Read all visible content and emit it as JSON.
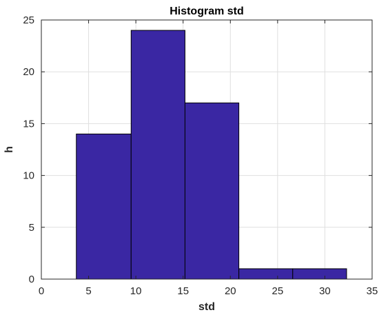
{
  "chart_data": {
    "type": "bar",
    "title": "Histogram std",
    "xlabel": "std",
    "ylabel": "h",
    "xlim": [
      0,
      35
    ],
    "ylim": [
      0,
      25
    ],
    "xticks": [
      "0",
      "5",
      "10",
      "15",
      "20",
      "25",
      "30",
      "35"
    ],
    "yticks": [
      "0",
      "5",
      "10",
      "15",
      "20",
      "25"
    ],
    "grid": true,
    "bins": [
      {
        "start": 3.7,
        "end": 9.5,
        "value": 14
      },
      {
        "start": 9.5,
        "end": 15.2,
        "value": 24
      },
      {
        "start": 15.2,
        "end": 20.9,
        "value": 17
      },
      {
        "start": 20.9,
        "end": 26.6,
        "value": 1
      },
      {
        "start": 26.6,
        "end": 32.3,
        "value": 1
      }
    ],
    "bar_color": "#3a27a3",
    "edge_color": "#000000"
  }
}
